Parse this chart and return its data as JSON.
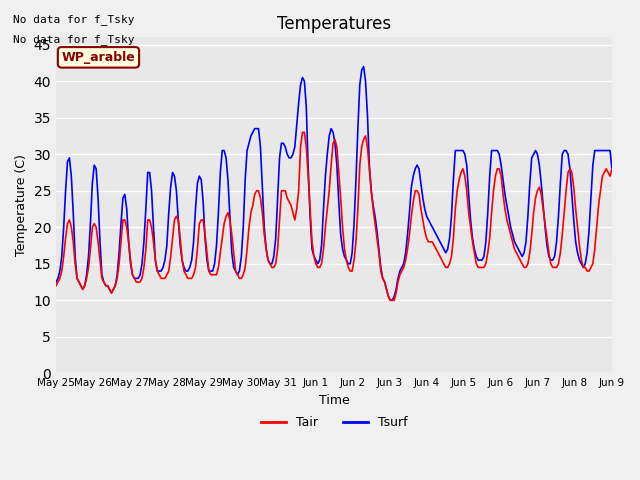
{
  "title": "Temperatures",
  "xlabel": "Time",
  "ylabel": "Temperature (C)",
  "text_top_left": [
    "No data for f_Tsky",
    "No data for f_Tsky"
  ],
  "wp_label": "WP_arable",
  "ylim": [
    0,
    46
  ],
  "yticks": [
    0,
    5,
    10,
    15,
    20,
    25,
    30,
    35,
    40,
    45
  ],
  "xtick_labels": [
    "May 25",
    "May 26",
    "May 27",
    "May 28",
    "May 29",
    "May 30",
    "May 31",
    "Jun 1",
    "Jun 2",
    "Jun 3",
    "Jun 4",
    "Jun 5",
    "Jun 6",
    "Jun 7",
    "Jun 8",
    "Jun 9"
  ],
  "color_tair": "#FF0000",
  "color_tsurf": "#0000FF",
  "legend_entries": [
    "Tair",
    "Tsurf"
  ],
  "fig_bg_color": "#F0F0F0",
  "axes_bg_color": "#E8E8E8",
  "grid_color": "#FFFFFF",
  "tair_data": [
    12.0,
    12.5,
    13.0,
    14.0,
    16.0,
    18.5,
    20.5,
    21.0,
    20.0,
    18.0,
    15.0,
    13.0,
    12.5,
    12.0,
    11.5,
    12.0,
    13.0,
    14.5,
    17.0,
    20.0,
    20.5,
    20.0,
    18.0,
    15.5,
    13.0,
    12.5,
    12.0,
    12.0,
    11.5,
    11.0,
    11.5,
    12.0,
    13.0,
    15.0,
    18.0,
    21.0,
    21.0,
    20.0,
    18.0,
    15.5,
    13.5,
    13.0,
    12.5,
    12.5,
    12.5,
    13.0,
    14.5,
    17.0,
    21.0,
    21.0,
    20.0,
    18.0,
    15.5,
    14.0,
    13.5,
    13.0,
    13.0,
    13.0,
    13.5,
    14.0,
    16.0,
    18.5,
    21.0,
    21.5,
    21.0,
    18.5,
    15.5,
    14.0,
    13.5,
    13.0,
    13.0,
    13.0,
    13.5,
    14.5,
    17.0,
    20.5,
    21.0,
    21.0,
    19.0,
    16.5,
    14.0,
    13.5,
    13.5,
    13.5,
    13.5,
    14.5,
    16.5,
    18.5,
    20.5,
    21.5,
    22.0,
    21.0,
    19.0,
    16.5,
    14.0,
    13.5,
    13.0,
    13.0,
    13.5,
    14.5,
    17.0,
    20.0,
    22.0,
    23.0,
    24.5,
    25.0,
    25.0,
    24.0,
    22.0,
    19.0,
    17.0,
    15.5,
    15.0,
    14.5,
    14.5,
    15.0,
    17.0,
    21.0,
    25.0,
    25.0,
    25.0,
    24.0,
    23.5,
    23.0,
    22.0,
    21.0,
    22.5,
    25.0,
    31.0,
    33.0,
    33.0,
    31.0,
    27.0,
    22.5,
    18.0,
    16.0,
    15.0,
    14.5,
    14.5,
    15.0,
    17.0,
    20.0,
    22.5,
    25.0,
    28.5,
    31.5,
    32.0,
    31.0,
    27.5,
    24.0,
    20.0,
    17.0,
    15.5,
    14.5,
    14.0,
    14.0,
    15.5,
    18.0,
    22.5,
    28.5,
    31.0,
    32.0,
    32.5,
    31.0,
    28.0,
    25.0,
    22.5,
    20.5,
    18.5,
    16.5,
    14.0,
    13.0,
    12.5,
    11.5,
    10.5,
    10.0,
    10.0,
    10.0,
    11.0,
    12.5,
    13.5,
    14.0,
    14.5,
    15.5,
    17.0,
    19.0,
    21.5,
    23.5,
    25.0,
    25.0,
    24.5,
    22.5,
    21.0,
    19.5,
    18.5,
    18.0,
    18.0,
    18.0,
    17.5,
    17.0,
    16.5,
    16.0,
    15.5,
    15.0,
    14.5,
    14.5,
    15.0,
    16.0,
    18.5,
    22.5,
    25.0,
    26.5,
    27.5,
    28.0,
    27.0,
    25.0,
    22.0,
    20.0,
    18.0,
    16.5,
    15.0,
    14.5,
    14.5,
    14.5,
    14.5,
    15.0,
    16.5,
    18.5,
    22.0,
    25.0,
    27.0,
    28.0,
    28.0,
    27.0,
    24.5,
    22.5,
    21.0,
    20.0,
    19.0,
    18.0,
    17.0,
    16.5,
    16.0,
    15.5,
    15.0,
    14.5,
    14.5,
    15.0,
    16.5,
    19.0,
    22.0,
    24.0,
    25.0,
    25.5,
    24.5,
    22.5,
    20.5,
    18.5,
    16.5,
    15.0,
    14.5,
    14.5,
    14.5,
    15.0,
    16.5,
    19.0,
    22.0,
    25.0,
    27.5,
    28.0,
    27.5,
    25.5,
    22.5,
    20.0,
    17.5,
    15.5,
    14.5,
    14.5,
    14.0,
    14.0,
    14.5,
    15.0,
    17.0,
    20.0,
    23.0,
    25.0,
    27.0,
    27.5,
    28.0,
    27.5,
    27.0,
    28.0
  ],
  "tsurf_data": [
    12.5,
    13.0,
    14.0,
    16.0,
    20.0,
    25.0,
    29.0,
    29.5,
    27.0,
    22.0,
    16.0,
    13.0,
    12.5,
    12.0,
    11.5,
    12.0,
    13.5,
    16.0,
    20.5,
    26.0,
    28.5,
    28.0,
    24.0,
    18.0,
    13.5,
    12.5,
    12.0,
    12.0,
    11.5,
    11.0,
    11.5,
    12.0,
    13.5,
    16.5,
    20.5,
    24.0,
    24.5,
    22.5,
    18.0,
    15.0,
    13.5,
    13.0,
    13.0,
    13.0,
    13.5,
    15.0,
    18.0,
    22.5,
    27.5,
    27.5,
    25.0,
    20.0,
    15.5,
    14.0,
    14.0,
    14.0,
    14.5,
    15.5,
    17.5,
    22.0,
    25.5,
    27.5,
    27.0,
    25.0,
    21.0,
    17.5,
    15.5,
    14.5,
    14.0,
    14.0,
    14.5,
    15.5,
    18.0,
    22.5,
    26.0,
    27.0,
    26.5,
    23.5,
    18.5,
    15.5,
    14.0,
    14.0,
    14.0,
    15.0,
    17.5,
    22.0,
    27.5,
    30.5,
    30.5,
    29.5,
    26.5,
    21.5,
    16.5,
    14.5,
    14.0,
    13.5,
    14.0,
    16.0,
    20.0,
    26.5,
    30.5,
    31.5,
    32.5,
    33.0,
    33.5,
    33.5,
    33.5,
    31.0,
    25.5,
    20.0,
    17.0,
    15.5,
    15.0,
    15.0,
    16.0,
    18.5,
    24.0,
    29.5,
    31.5,
    31.5,
    31.0,
    30.0,
    29.5,
    29.5,
    30.0,
    31.0,
    34.0,
    37.0,
    39.5,
    40.5,
    40.0,
    36.5,
    28.0,
    21.5,
    17.0,
    16.0,
    15.5,
    15.0,
    15.5,
    17.5,
    22.5,
    27.0,
    30.0,
    32.5,
    33.5,
    33.0,
    31.5,
    28.5,
    23.5,
    19.0,
    17.0,
    16.0,
    15.5,
    15.0,
    15.0,
    16.5,
    20.5,
    26.5,
    33.5,
    39.5,
    41.5,
    42.0,
    40.0,
    35.5,
    28.5,
    25.0,
    23.0,
    21.5,
    19.5,
    17.0,
    14.5,
    13.0,
    12.5,
    11.5,
    10.5,
    10.0,
    10.0,
    10.5,
    11.5,
    13.0,
    14.0,
    14.5,
    15.0,
    16.5,
    19.0,
    22.0,
    25.5,
    27.0,
    28.0,
    28.5,
    28.0,
    26.0,
    24.0,
    22.5,
    21.5,
    21.0,
    20.5,
    20.0,
    19.5,
    19.0,
    18.5,
    18.0,
    17.5,
    17.0,
    16.5,
    17.0,
    18.5,
    21.5,
    26.5,
    30.5,
    30.5,
    30.5,
    30.5,
    30.5,
    30.0,
    28.5,
    24.5,
    21.0,
    18.5,
    17.0,
    16.0,
    15.5,
    15.5,
    15.5,
    16.0,
    18.0,
    22.0,
    27.0,
    30.5,
    30.5,
    30.5,
    30.5,
    30.0,
    28.5,
    26.5,
    24.5,
    23.0,
    21.5,
    20.0,
    19.0,
    18.0,
    17.5,
    17.0,
    16.5,
    16.0,
    16.5,
    18.0,
    21.5,
    26.0,
    29.5,
    30.0,
    30.5,
    30.0,
    28.5,
    26.0,
    23.0,
    20.0,
    17.5,
    16.0,
    15.5,
    15.5,
    16.0,
    18.0,
    21.5,
    26.0,
    30.0,
    30.5,
    30.5,
    30.0,
    28.0,
    24.5,
    21.0,
    18.0,
    16.5,
    15.5,
    15.0,
    14.5,
    15.0,
    16.5,
    19.5,
    24.0,
    28.5,
    30.5,
    30.5,
    30.5,
    30.5,
    30.5,
    30.5,
    30.5,
    30.5,
    30.5,
    28.0
  ]
}
